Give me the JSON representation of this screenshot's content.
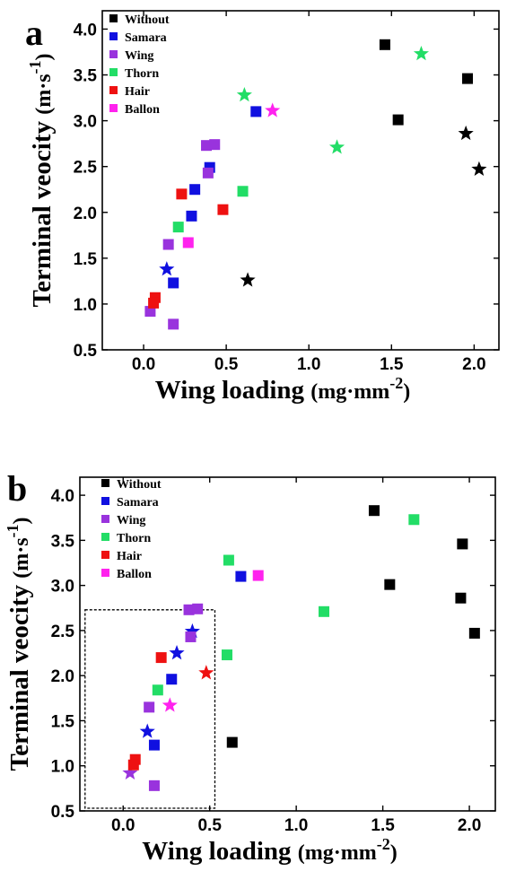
{
  "chart_data": [
    {
      "panel_label": "a",
      "type": "scatter",
      "xlabel": "Wing loading",
      "xunit_base": "(mg·mm",
      "xunit_sup": "-2",
      "xunit_end": ")",
      "ylabel": "Terminal veocity",
      "yunit_base": "(m·s",
      "yunit_sup": "-1",
      "yunit_end": ")",
      "xlim": [
        -0.25,
        2.15
      ],
      "ylim": [
        0.5,
        4.2
      ],
      "xticks": [
        {
          "v": 0.0,
          "label": "0.0"
        },
        {
          "v": 0.5,
          "label": "0.5"
        },
        {
          "v": 1.0,
          "label": "1.0"
        },
        {
          "v": 1.5,
          "label": "1.5"
        },
        {
          "v": 2.0,
          "label": "2.0"
        }
      ],
      "yticks": [
        {
          "v": 0.5,
          "label": "0.5"
        },
        {
          "v": 1.0,
          "label": "1.0"
        },
        {
          "v": 1.5,
          "label": "1.5"
        },
        {
          "v": 2.0,
          "label": "2.0"
        },
        {
          "v": 2.5,
          "label": "2.5"
        },
        {
          "v": 3.0,
          "label": "3.0"
        },
        {
          "v": 3.5,
          "label": "3.5"
        },
        {
          "v": 4.0,
          "label": "4.0"
        }
      ],
      "legend_position": "top-left",
      "series": [
        {
          "name": "Without",
          "color": "#000000",
          "points": [
            {
              "x": 1.46,
              "y": 3.83,
              "marker": "square"
            },
            {
              "x": 1.96,
              "y": 3.46,
              "marker": "square"
            },
            {
              "x": 1.54,
              "y": 3.01,
              "marker": "square"
            },
            {
              "x": 1.95,
              "y": 2.86,
              "marker": "star"
            },
            {
              "x": 2.03,
              "y": 2.47,
              "marker": "star"
            },
            {
              "x": 0.63,
              "y": 1.26,
              "marker": "star"
            }
          ]
        },
        {
          "name": "Samara",
          "color": "#1010e0",
          "points": [
            {
              "x": 0.68,
              "y": 3.1,
              "marker": "square"
            },
            {
              "x": 0.4,
              "y": 2.49,
              "marker": "square"
            },
            {
              "x": 0.31,
              "y": 2.25,
              "marker": "square"
            },
            {
              "x": 0.29,
              "y": 1.96,
              "marker": "square"
            },
            {
              "x": 0.18,
              "y": 1.23,
              "marker": "square"
            },
            {
              "x": 0.14,
              "y": 1.38,
              "marker": "star"
            }
          ]
        },
        {
          "name": "Wing",
          "color": "#9933dd",
          "points": [
            {
              "x": 0.38,
              "y": 2.73,
              "marker": "square"
            },
            {
              "x": 0.43,
              "y": 2.74,
              "marker": "square"
            },
            {
              "x": 0.39,
              "y": 2.43,
              "marker": "square"
            },
            {
              "x": 0.15,
              "y": 1.65,
              "marker": "square"
            },
            {
              "x": 0.04,
              "y": 0.92,
              "marker": "square"
            },
            {
              "x": 0.18,
              "y": 0.78,
              "marker": "square"
            }
          ]
        },
        {
          "name": "Thorn",
          "color": "#22dd66",
          "points": [
            {
              "x": 0.61,
              "y": 3.28,
              "marker": "star"
            },
            {
              "x": 1.68,
              "y": 3.73,
              "marker": "star"
            },
            {
              "x": 1.17,
              "y": 2.71,
              "marker": "star"
            },
            {
              "x": 0.6,
              "y": 2.23,
              "marker": "square"
            },
            {
              "x": 0.21,
              "y": 1.84,
              "marker": "square"
            }
          ]
        },
        {
          "name": "Hair",
          "color": "#ee1111",
          "points": [
            {
              "x": 0.23,
              "y": 2.2,
              "marker": "square"
            },
            {
              "x": 0.48,
              "y": 2.03,
              "marker": "square"
            },
            {
              "x": 0.07,
              "y": 1.07,
              "marker": "square"
            },
            {
              "x": 0.06,
              "y": 1.01,
              "marker": "square"
            }
          ]
        },
        {
          "name": "Ballon",
          "color": "#ff22ee",
          "points": [
            {
              "x": 0.78,
              "y": 3.11,
              "marker": "star"
            },
            {
              "x": 0.27,
              "y": 1.67,
              "marker": "square"
            }
          ]
        }
      ]
    },
    {
      "panel_label": "b",
      "type": "scatter",
      "xlabel": "Wing loading",
      "xunit_base": "(mg·mm",
      "xunit_sup": "-2",
      "xunit_end": ")",
      "ylabel": "Terminal veocity",
      "yunit_base": "(m·s",
      "yunit_sup": "-1",
      "yunit_end": ")",
      "xlim": [
        -0.25,
        2.15
      ],
      "ylim": [
        0.5,
        4.2
      ],
      "xticks": [
        {
          "v": 0.0,
          "label": "0.0"
        },
        {
          "v": 0.5,
          "label": "0.5"
        },
        {
          "v": 1.0,
          "label": "1.0"
        },
        {
          "v": 1.5,
          "label": "1.5"
        },
        {
          "v": 2.0,
          "label": "2.0"
        }
      ],
      "yticks": [
        {
          "v": 0.5,
          "label": "0.5"
        },
        {
          "v": 1.0,
          "label": "1.0"
        },
        {
          "v": 1.5,
          "label": "1.5"
        },
        {
          "v": 2.0,
          "label": "2.0"
        },
        {
          "v": 2.5,
          "label": "2.5"
        },
        {
          "v": 3.0,
          "label": "3.0"
        },
        {
          "v": 3.5,
          "label": "3.5"
        },
        {
          "v": 4.0,
          "label": "4.0"
        }
      ],
      "legend_position": "top-left",
      "highlight_box": {
        "x0": -0.22,
        "x1": 0.53,
        "y0": 0.53,
        "y1": 2.73
      },
      "series": [
        {
          "name": "Without",
          "color": "#000000",
          "points": [
            {
              "x": 1.45,
              "y": 3.83,
              "marker": "square"
            },
            {
              "x": 1.96,
              "y": 3.46,
              "marker": "square"
            },
            {
              "x": 1.54,
              "y": 3.01,
              "marker": "square"
            },
            {
              "x": 1.95,
              "y": 2.86,
              "marker": "square"
            },
            {
              "x": 2.03,
              "y": 2.47,
              "marker": "square"
            },
            {
              "x": 0.63,
              "y": 1.26,
              "marker": "square"
            }
          ]
        },
        {
          "name": "Samara",
          "color": "#1010e0",
          "points": [
            {
              "x": 0.68,
              "y": 3.1,
              "marker": "square"
            },
            {
              "x": 0.28,
              "y": 1.96,
              "marker": "square"
            },
            {
              "x": 0.18,
              "y": 1.23,
              "marker": "square"
            },
            {
              "x": 0.4,
              "y": 2.49,
              "marker": "star"
            },
            {
              "x": 0.31,
              "y": 2.25,
              "marker": "star"
            },
            {
              "x": 0.14,
              "y": 1.38,
              "marker": "star"
            }
          ]
        },
        {
          "name": "Wing",
          "color": "#9933dd",
          "points": [
            {
              "x": 0.38,
              "y": 2.73,
              "marker": "square"
            },
            {
              "x": 0.43,
              "y": 2.74,
              "marker": "square"
            },
            {
              "x": 0.39,
              "y": 2.43,
              "marker": "square"
            },
            {
              "x": 0.15,
              "y": 1.65,
              "marker": "square"
            },
            {
              "x": 0.18,
              "y": 0.78,
              "marker": "square"
            },
            {
              "x": 0.04,
              "y": 0.92,
              "marker": "star"
            }
          ]
        },
        {
          "name": "Thorn",
          "color": "#22dd66",
          "points": [
            {
              "x": 0.61,
              "y": 3.28,
              "marker": "square"
            },
            {
              "x": 1.68,
              "y": 3.73,
              "marker": "square"
            },
            {
              "x": 1.16,
              "y": 2.71,
              "marker": "square"
            },
            {
              "x": 0.6,
              "y": 2.23,
              "marker": "square"
            },
            {
              "x": 0.2,
              "y": 1.84,
              "marker": "square"
            }
          ]
        },
        {
          "name": "Hair",
          "color": "#ee1111",
          "points": [
            {
              "x": 0.22,
              "y": 2.2,
              "marker": "square"
            },
            {
              "x": 0.07,
              "y": 1.07,
              "marker": "square"
            },
            {
              "x": 0.06,
              "y": 1.01,
              "marker": "square"
            },
            {
              "x": 0.48,
              "y": 2.03,
              "marker": "star"
            }
          ]
        },
        {
          "name": "Ballon",
          "color": "#ff22ee",
          "points": [
            {
              "x": 0.78,
              "y": 3.11,
              "marker": "square"
            },
            {
              "x": 0.27,
              "y": 1.67,
              "marker": "star"
            }
          ]
        }
      ]
    }
  ]
}
